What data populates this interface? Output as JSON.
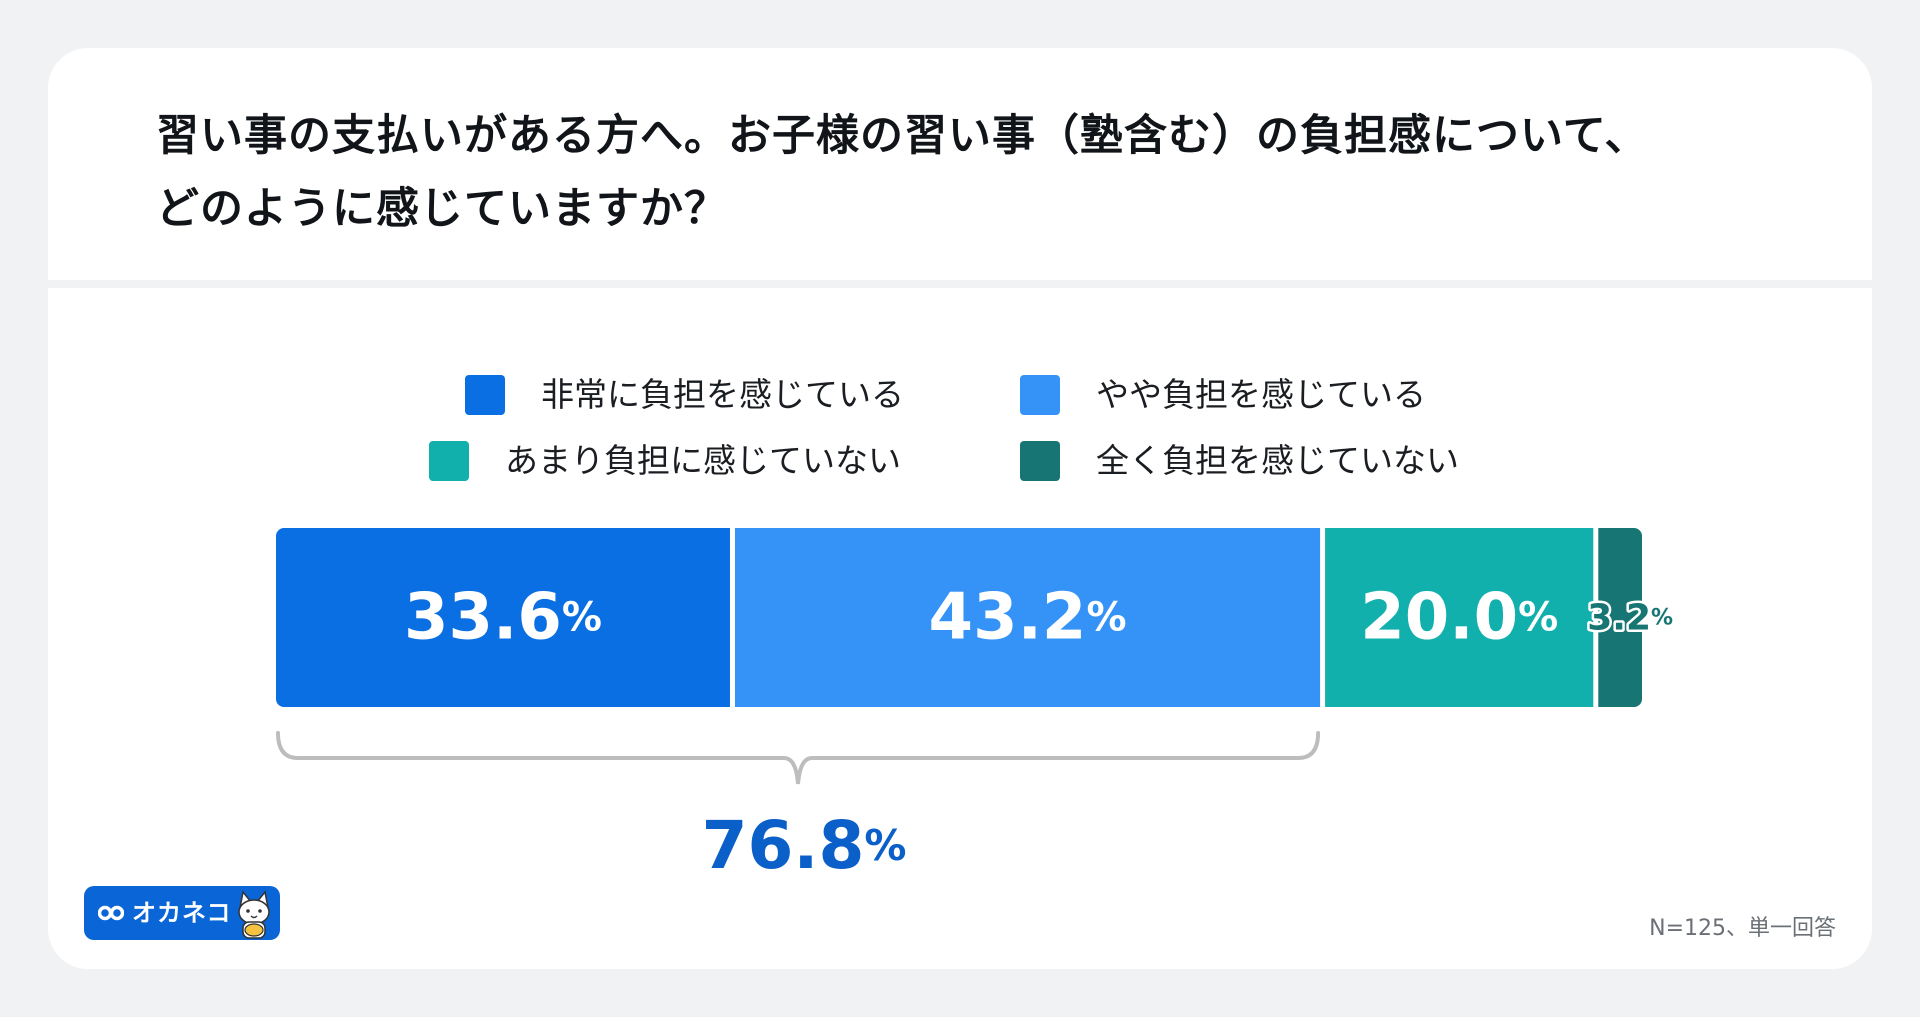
{
  "title_line1": "習い事の支払いがある方へ。お子様の習い事（塾含む）の負担感について、",
  "title_line2": "どのように感じていますか？",
  "chart_data": {
    "type": "bar",
    "orientation": "horizontal-stacked",
    "categories": [
      "非常に負担を感じている",
      "やや負担を感じている",
      "あまり負担に感じていない",
      "全く負担を感じていない"
    ],
    "values": [
      33.6,
      43.2,
      20.0,
      3.2
    ],
    "value_labels": [
      "33.6",
      "43.2",
      "20.0",
      "3.2"
    ],
    "unit": "%",
    "colors": [
      "#0a6fe3",
      "#3593f7",
      "#12b0ad",
      "#177573"
    ],
    "bracket": {
      "spans_categories": [
        "非常に負担を感じている",
        "やや負担を感じている"
      ],
      "total_label": "76.8",
      "unit": "%",
      "color": "#0a5fc8"
    },
    "legend": [
      {
        "label": "非常に負担を感じている",
        "color": "#0a6fe3"
      },
      {
        "label": "やや負担を感じている",
        "color": "#3593f7"
      },
      {
        "label": "あまり負担に感じていない",
        "color": "#12b0ad"
      },
      {
        "label": "全く負担を感じていない",
        "color": "#177573"
      }
    ],
    "legend_placement": "top",
    "grid": false
  },
  "logo_text": "オカネコ",
  "footnote": "N=125、単一回答"
}
